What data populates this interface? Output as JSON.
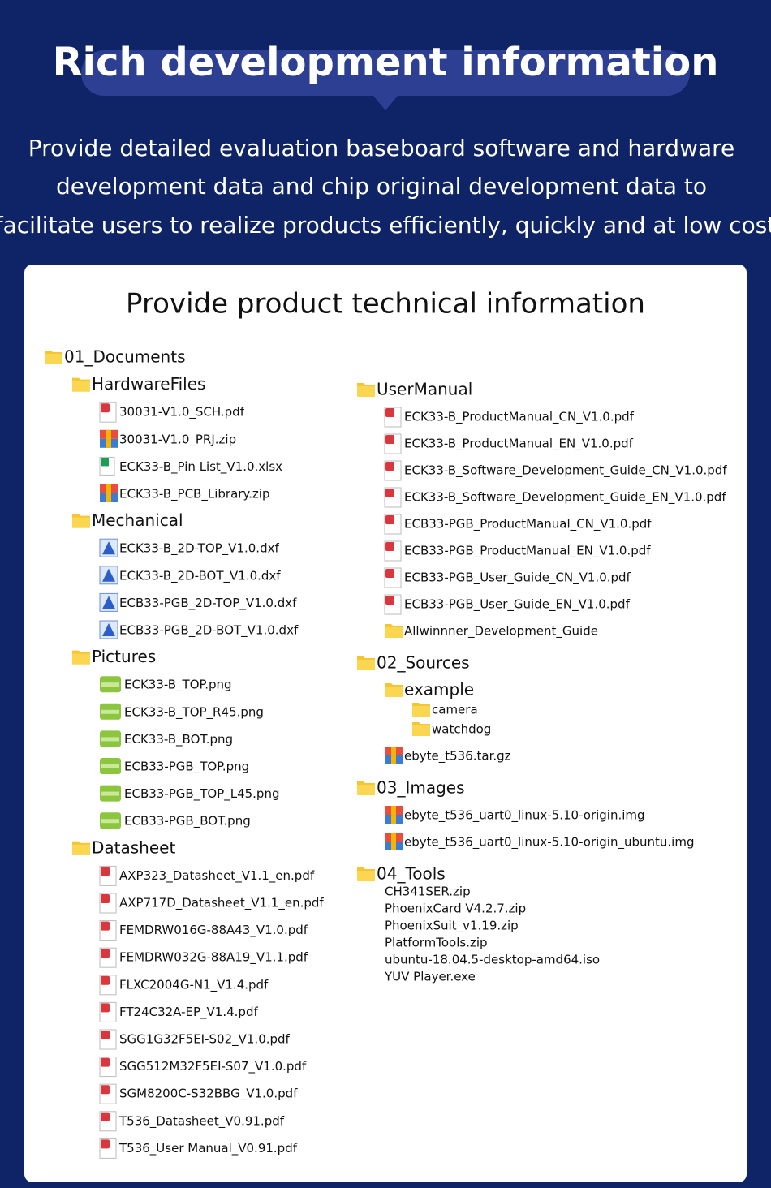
{
  "header": {
    "title": "Rich development information",
    "description": [
      "Provide detailed evaluation baseboard software and hardware",
      "development data and chip original development data to",
      "facilitate users to realize products efficiently, quickly and at low cost"
    ]
  },
  "panel": {
    "title": "Provide product technical information",
    "left": [
      {
        "name": "01_Documents",
        "icon": "folder",
        "children": [
          {
            "name": "HardwareFiles",
            "icon": "folder",
            "children": [
              {
                "name": "30031-V1.0_SCH.pdf",
                "icon": "pdf"
              },
              {
                "name": "30031-V1.0_PRJ.zip",
                "icon": "zip"
              },
              {
                "name": "ECK33-B_Pin List_V1.0.xlsx",
                "icon": "xlsx"
              },
              {
                "name": "ECK33-B_PCB_Library.zip",
                "icon": "zip"
              }
            ]
          },
          {
            "name": "Mechanical",
            "icon": "folder",
            "children": [
              {
                "name": "ECK33-B_2D-TOP_V1.0.dxf",
                "icon": "dxf"
              },
              {
                "name": "ECK33-B_2D-BOT_V1.0.dxf",
                "icon": "dxf"
              },
              {
                "name": "ECB33-PGB_2D-TOP_V1.0.dxf",
                "icon": "dxf"
              },
              {
                "name": "ECB33-PGB_2D-BOT_V1.0.dxf",
                "icon": "dxf"
              }
            ]
          },
          {
            "name": "Pictures",
            "icon": "folder",
            "children": [
              {
                "name": "ECK33-B_TOP.png",
                "icon": "png"
              },
              {
                "name": "ECK33-B_TOP_R45.png",
                "icon": "png"
              },
              {
                "name": "ECK33-B_BOT.png",
                "icon": "png"
              },
              {
                "name": "ECB33-PGB_TOP.png",
                "icon": "png"
              },
              {
                "name": "ECB33-PGB_TOP_L45.png",
                "icon": "png"
              },
              {
                "name": "ECB33-PGB_BOT.png",
                "icon": "png"
              }
            ]
          },
          {
            "name": "Datasheet",
            "icon": "folder",
            "children": [
              {
                "name": "AXP323_Datasheet_V1.1_en.pdf",
                "icon": "pdf"
              },
              {
                "name": "AXP717D_Datasheet_V1.1_en.pdf",
                "icon": "pdf"
              },
              {
                "name": "FEMDRW016G-88A43_V1.0.pdf",
                "icon": "pdf"
              },
              {
                "name": "FEMDRW032G-88A19_V1.1.pdf",
                "icon": "pdf"
              },
              {
                "name": "FLXC2004G-N1_V1.4.pdf",
                "icon": "pdf"
              },
              {
                "name": "FT24C32A-EP_V1.4.pdf",
                "icon": "pdf"
              },
              {
                "name": "SGG1G32F5EI-S02_V1.0.pdf",
                "icon": "pdf"
              },
              {
                "name": "SGG512M32F5EI-S07_V1.0.pdf",
                "icon": "pdf"
              },
              {
                "name": "SGM8200C-S32BBG_V1.0.pdf",
                "icon": "pdf"
              },
              {
                "name": "T536_Datasheet_V0.91.pdf",
                "icon": "pdf"
              },
              {
                "name": "T536_User Manual_V0.91.pdf",
                "icon": "pdf"
              }
            ]
          }
        ]
      }
    ],
    "right": [
      {
        "name": "UserManual",
        "icon": "folder",
        "children": [
          {
            "name": "ECK33-B_ProductManual_CN_V1.0.pdf",
            "icon": "pdf"
          },
          {
            "name": "ECK33-B_ProductManual_EN_V1.0.pdf",
            "icon": "pdf"
          },
          {
            "name": "ECK33-B_Software_Development_Guide_CN_V1.0.pdf",
            "icon": "pdf"
          },
          {
            "name": "ECK33-B_Software_Development_Guide_EN_V1.0.pdf",
            "icon": "pdf"
          },
          {
            "name": "ECB33-PGB_ProductManual_CN_V1.0.pdf",
            "icon": "pdf"
          },
          {
            "name": "ECB33-PGB_ProductManual_EN_V1.0.pdf",
            "icon": "pdf"
          },
          {
            "name": "ECB33-PGB_User_Guide_CN_V1.0.pdf",
            "icon": "pdf"
          },
          {
            "name": "ECB33-PGB_User_Guide_EN_V1.0.pdf",
            "icon": "pdf"
          },
          {
            "name": "Allwinnner_Development_Guide",
            "icon": "folder"
          }
        ]
      },
      {
        "name": "02_Sources",
        "icon": "folder",
        "children": [
          {
            "name": "example",
            "icon": "folder",
            "children": [
              {
                "name": "camera",
                "icon": "folder"
              },
              {
                "name": "watchdog",
                "icon": "folder"
              }
            ]
          },
          {
            "name": "ebyte_t536.tar.gz",
            "icon": "zip"
          }
        ]
      },
      {
        "name": "03_Images",
        "icon": "folder",
        "children": [
          {
            "name": "ebyte_t536_uart0_linux-5.10-origin.img",
            "icon": "zip"
          },
          {
            "name": "ebyte_t536_uart0_linux-5.10-origin_ubuntu.img",
            "icon": "zip"
          }
        ]
      },
      {
        "name": "04_Tools",
        "icon": "folder",
        "children": [
          {
            "name": "CH341SER.zip"
          },
          {
            "name": "PhoenixCard V4.2.7.zip"
          },
          {
            "name": "PhoenixSuit_v1.19.zip"
          },
          {
            "name": "PlatformTools.zip"
          },
          {
            "name": "ubuntu-18.04.5-desktop-amd64.iso"
          },
          {
            "name": "YUV Player.exe"
          }
        ]
      }
    ]
  }
}
